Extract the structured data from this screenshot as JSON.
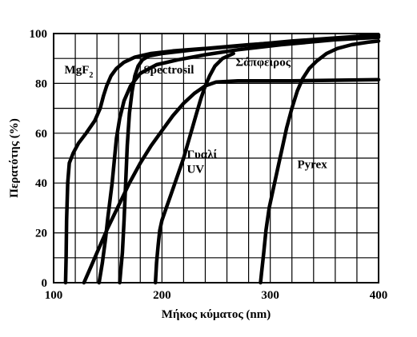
{
  "chart_data": {
    "type": "line",
    "title": "",
    "xlabel": "Μήκος κύματος  (nm)",
    "ylabel": "Περατότης (%)",
    "xlim": [
      100,
      400
    ],
    "ylim": [
      0,
      100
    ],
    "x_ticks": [
      "100",
      "200",
      "300",
      "400"
    ],
    "y_ticks": [
      "0",
      "20",
      "40",
      "60",
      "80",
      "100"
    ],
    "grid": true,
    "legend": "none",
    "series": [
      {
        "name": "MgF",
        "name_subscript": "2",
        "points": [
          [
            111,
            0
          ],
          [
            111.5,
            10
          ],
          [
            112,
            25
          ],
          [
            113,
            40
          ],
          [
            114.5,
            48
          ],
          [
            118,
            52
          ],
          [
            123,
            56
          ],
          [
            130,
            60
          ],
          [
            138,
            65
          ],
          [
            143,
            70
          ],
          [
            146,
            75
          ],
          [
            149,
            79
          ],
          [
            153,
            83
          ],
          [
            158,
            86
          ],
          [
            165,
            88.5
          ],
          [
            175,
            90.5
          ],
          [
            190,
            92
          ],
          [
            210,
            93
          ],
          [
            240,
            94
          ],
          [
            280,
            95.5
          ],
          [
            330,
            97
          ],
          [
            370,
            98
          ],
          [
            400,
            99
          ]
        ]
      },
      {
        "name": "Spectrosil",
        "points": [
          [
            161,
            0
          ],
          [
            162,
            5
          ],
          [
            163.5,
            12
          ],
          [
            165,
            25
          ],
          [
            166.5,
            40
          ],
          [
            168,
            55
          ],
          [
            170,
            68
          ],
          [
            172.5,
            77
          ],
          [
            175,
            83
          ],
          [
            178,
            87
          ],
          [
            182,
            89.5
          ],
          [
            188,
            91
          ],
          [
            200,
            92
          ],
          [
            230,
            93.5
          ],
          [
            270,
            95
          ],
          [
            320,
            97
          ],
          [
            400,
            99.5
          ]
        ]
      },
      {
        "name": "Σάπφειρος",
        "points": [
          [
            142,
            0
          ],
          [
            145,
            8
          ],
          [
            148,
            18
          ],
          [
            150,
            26
          ],
          [
            152,
            33
          ],
          [
            154,
            40
          ],
          [
            156,
            49
          ],
          [
            158,
            58
          ],
          [
            161,
            66
          ],
          [
            165,
            73
          ],
          [
            171,
            79
          ],
          [
            180,
            84
          ],
          [
            195,
            87.5
          ],
          [
            215,
            89.5
          ],
          [
            240,
            91.5
          ],
          [
            270,
            93.5
          ],
          [
            310,
            95.5
          ],
          [
            360,
            97.5
          ],
          [
            400,
            98.5
          ]
        ]
      },
      {
        "name": "Γυαλί\nUV",
        "points": [
          [
            128,
            0
          ],
          [
            135,
            7
          ],
          [
            142,
            14
          ],
          [
            150,
            22
          ],
          [
            160,
            31
          ],
          [
            170,
            40
          ],
          [
            180,
            48
          ],
          [
            190,
            55
          ],
          [
            200,
            61
          ],
          [
            210,
            67
          ],
          [
            220,
            72
          ],
          [
            230,
            76
          ],
          [
            240,
            79
          ],
          [
            250,
            80.5
          ],
          [
            270,
            81
          ],
          [
            320,
            81
          ],
          [
            400,
            81.5
          ]
        ]
      },
      {
        "name": "Pyrex",
        "points": [
          [
            194,
            0
          ],
          [
            195,
            8
          ],
          [
            196.5,
            15
          ],
          [
            198,
            21
          ],
          [
            200,
            25
          ],
          [
            204,
            30
          ],
          [
            208,
            35
          ],
          [
            212,
            40
          ],
          [
            216,
            45
          ],
          [
            220,
            50
          ],
          [
            224,
            56
          ],
          [
            228,
            62
          ],
          [
            232,
            68
          ],
          [
            236,
            74
          ],
          [
            240,
            79
          ],
          [
            244,
            83
          ],
          [
            249,
            87
          ],
          [
            256,
            90
          ],
          [
            266,
            92
          ]
        ]
      },
      {
        "name": "",
        "points": [
          [
            291,
            0
          ],
          [
            292,
            4
          ],
          [
            294,
            12
          ],
          [
            296,
            21
          ],
          [
            299,
            30
          ],
          [
            303,
            38
          ],
          [
            307,
            46
          ],
          [
            311,
            54
          ],
          [
            315,
            62
          ],
          [
            320,
            70
          ],
          [
            325,
            77
          ],
          [
            330,
            82
          ],
          [
            336,
            86
          ],
          [
            343,
            89
          ],
          [
            352,
            92
          ],
          [
            362,
            94
          ],
          [
            375,
            95.5
          ],
          [
            390,
            96.5
          ],
          [
            400,
            97
          ]
        ]
      }
    ],
    "annotations": [
      {
        "text": "MgF",
        "sub": "2",
        "x": 110,
        "y": 84
      },
      {
        "text": "Spectrosil",
        "x": 183,
        "y": 84
      },
      {
        "text": "Σάπφειρος",
        "x": 268,
        "y": 87
      },
      {
        "text": "Γυαλί",
        "x": 223,
        "y": 50
      },
      {
        "text": "UV",
        "x": 223,
        "y": 44
      },
      {
        "text": "Pyrex",
        "x": 325,
        "y": 46
      }
    ]
  }
}
